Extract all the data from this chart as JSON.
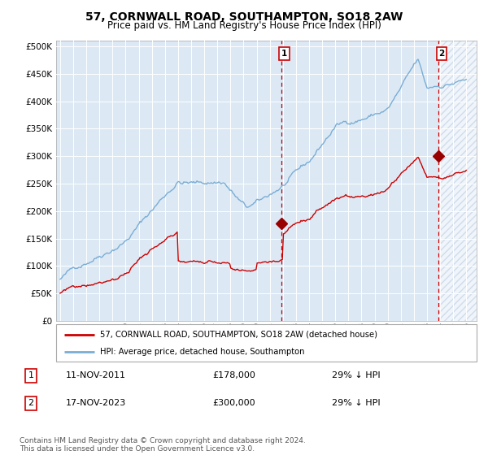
{
  "title": "57, CORNWALL ROAD, SOUTHAMPTON, SO18 2AW",
  "subtitle": "Price paid vs. HM Land Registry's House Price Index (HPI)",
  "title_fontsize": 10,
  "subtitle_fontsize": 8.5,
  "ylim": [
    0,
    510000
  ],
  "yticks": [
    0,
    50000,
    100000,
    150000,
    200000,
    250000,
    300000,
    350000,
    400000,
    450000,
    500000
  ],
  "ytick_labels": [
    "£0",
    "£50K",
    "£100K",
    "£150K",
    "£200K",
    "£250K",
    "£300K",
    "£350K",
    "£400K",
    "£450K",
    "£500K"
  ],
  "xlim_start": 1994.7,
  "xlim_end": 2026.8,
  "xticks": [
    1995,
    1996,
    1997,
    1998,
    1999,
    2000,
    2001,
    2002,
    2003,
    2004,
    2005,
    2006,
    2007,
    2008,
    2009,
    2010,
    2011,
    2012,
    2013,
    2014,
    2015,
    2016,
    2017,
    2018,
    2019,
    2020,
    2021,
    2022,
    2023,
    2024,
    2025,
    2026
  ],
  "background_color": "#ffffff",
  "plot_bg_color": "#dce9f5",
  "grid_color": "#ffffff",
  "hpi_line_color": "#7aadd4",
  "price_line_color": "#cc0000",
  "marker_color": "#990000",
  "vline_color": "#cc0000",
  "annotation_box_color": "#cc0000",
  "hatch_color": "#b8c8dd",
  "legend_label_price": "57, CORNWALL ROAD, SOUTHAMPTON, SO18 2AW (detached house)",
  "legend_label_hpi": "HPI: Average price, detached house, Southampton",
  "sale1_year": 2011.87,
  "sale1_price": 178000,
  "sale1_date": "11-NOV-2011",
  "sale1_hpi_pct": "29% ↓ HPI",
  "sale2_year": 2023.88,
  "sale2_price": 300000,
  "sale2_date": "17-NOV-2023",
  "sale2_hpi_pct": "29% ↓ HPI",
  "footer": "Contains HM Land Registry data © Crown copyright and database right 2024.\nThis data is licensed under the Open Government Licence v3.0.",
  "footer_fontsize": 6.5
}
